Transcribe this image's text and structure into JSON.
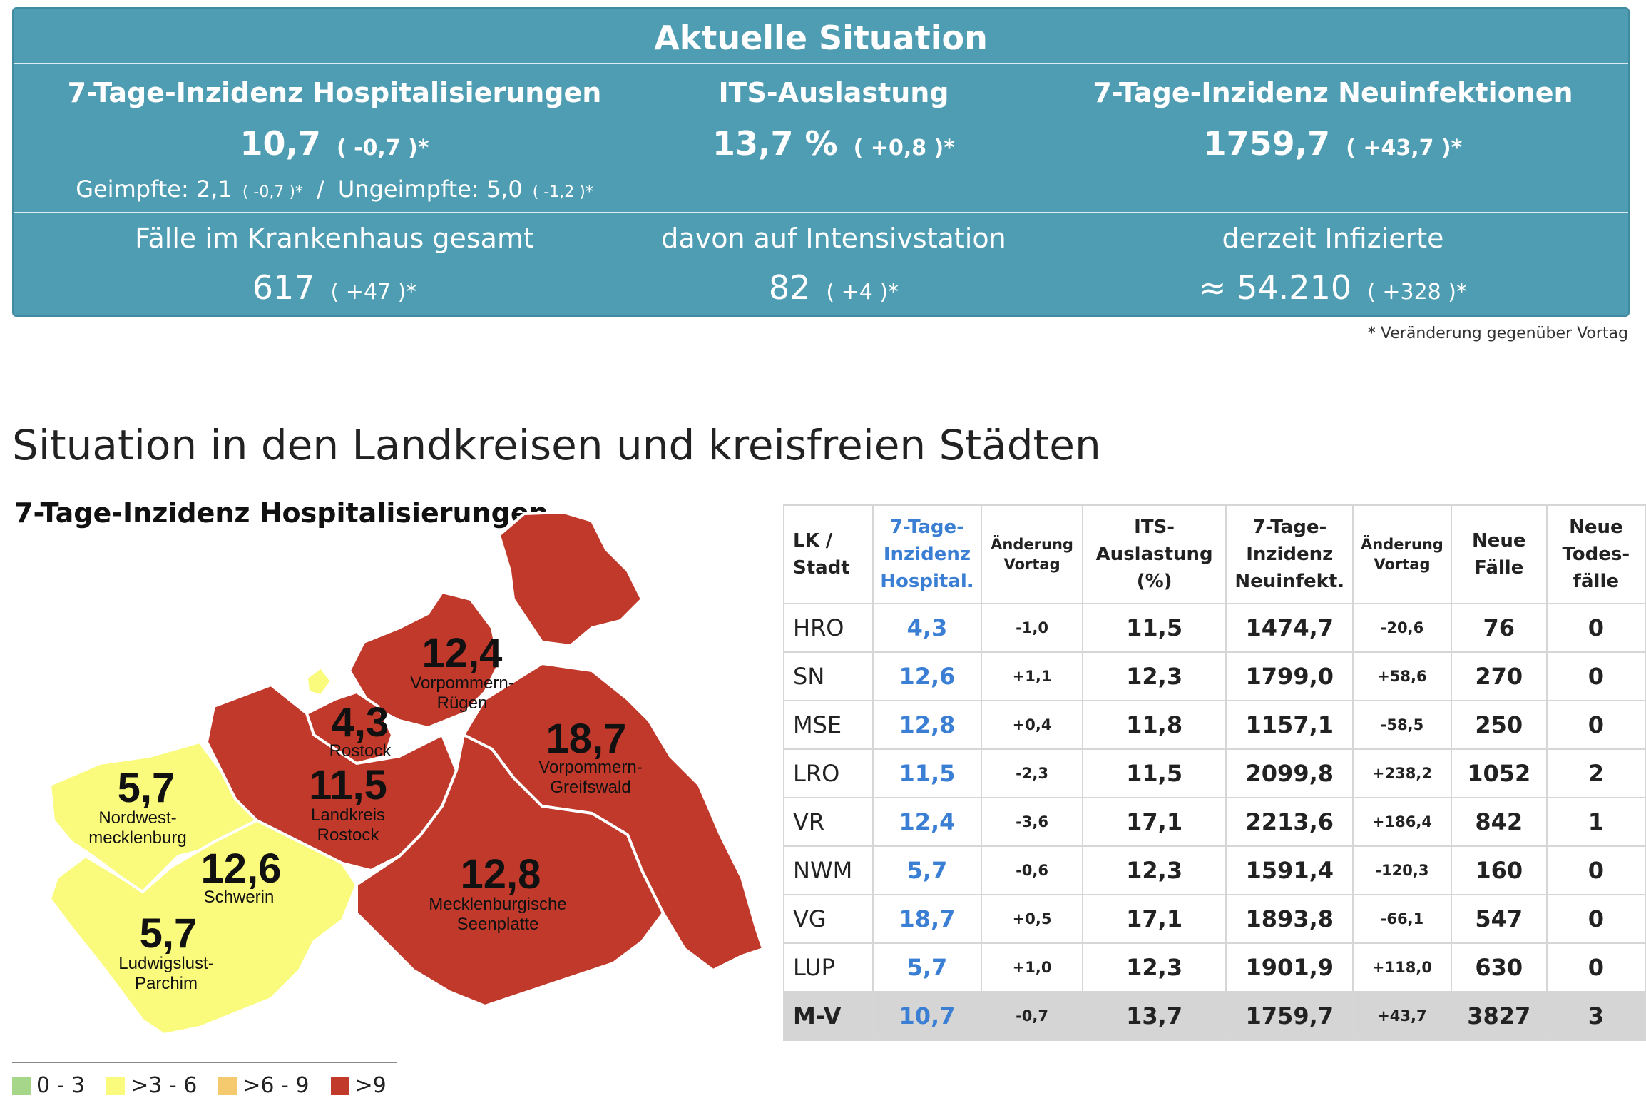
{
  "panel": {
    "title": "Aktuelle Situation",
    "hosp_label": "7-Tage-Inzidenz Hospitalisierungen",
    "hosp_value": "10,7",
    "hosp_delta": "( -0,7 )*",
    "vacc_label": "Geimpfte: 2,1",
    "vacc_delta": "( -0,7 )*",
    "separator": "/",
    "unvacc_label": "Ungeimpfte: 5,0",
    "unvacc_delta": "( -1,2 )*",
    "its_label": "ITS-Auslastung",
    "its_value": "13,7 %",
    "its_delta": "( +0,8 )*",
    "neu_label": "7-Tage-Inzidenz Neuinfektionen",
    "neu_value": "1759,7",
    "neu_delta": "( +43,7 )*",
    "kh_label": "Fälle im Krankenhaus gesamt",
    "kh_value": "617",
    "kh_delta": "( +47 )*",
    "int_label": "davon auf Intensivstation",
    "int_value": "82",
    "int_delta": "( +4 )*",
    "inf_label": "derzeit Infizierte",
    "inf_value": "≈ 54.210",
    "inf_delta": "( +328 )*"
  },
  "footnote": "* Veränderung gegenüber Vortag",
  "section_title": "Situation in den Landkreisen und kreisfreien Städten",
  "map": {
    "title": "7-Tage-Inzidenz Hospitalisierungen",
    "colors": {
      "green": "#a6d68a",
      "yellow": "#fafa7d",
      "orange": "#f5c96e",
      "red": "#c0392b"
    },
    "regions": [
      {
        "value": "12,4",
        "name1": "Vorpommern-",
        "name2": "Rügen"
      },
      {
        "value": "4,3",
        "name1": "Rostock",
        "name2": ""
      },
      {
        "value": "18,7",
        "name1": "Vorpommern-",
        "name2": "Greifswald"
      },
      {
        "value": "5,7",
        "name1": "Nordwest-",
        "name2": "mecklenburg"
      },
      {
        "value": "11,5",
        "name1": "Landkreis",
        "name2": "Rostock"
      },
      {
        "value": "12,6",
        "name1": "Schwerin",
        "name2": ""
      },
      {
        "value": "12,8",
        "name1": "Mecklenburgische",
        "name2": "Seenplatte"
      },
      {
        "value": "5,7",
        "name1": "Ludwigslust-",
        "name2": "Parchim"
      }
    ],
    "legend": [
      "0 - 3",
      ">3 - 6",
      ">6 - 9",
      ">9"
    ]
  },
  "table": {
    "headers": {
      "lk": [
        "LK /",
        "Stadt"
      ],
      "hosp": [
        "7-Tage-",
        "Inzidenz",
        "Hospital."
      ],
      "hosp_chg": [
        "Änderung",
        "Vortag"
      ],
      "its": [
        "ITS-",
        "Auslastung",
        "(%)"
      ],
      "neu": [
        "7-Tage-",
        "Inzidenz",
        "Neuinfekt."
      ],
      "neu_chg": [
        "Änderung",
        "Vortag"
      ],
      "faelle": [
        "Neue",
        "Fälle"
      ],
      "tod": [
        "Neue",
        "Todes-",
        "fälle"
      ]
    },
    "rows": [
      {
        "name": "HRO",
        "hosp": "4,3",
        "hosp_chg": "-1,0",
        "its": "11,5",
        "neu": "1474,7",
        "neu_chg": "-20,6",
        "faelle": "76",
        "tod": "0"
      },
      {
        "name": "SN",
        "hosp": "12,6",
        "hosp_chg": "+1,1",
        "its": "12,3",
        "neu": "1799,0",
        "neu_chg": "+58,6",
        "faelle": "270",
        "tod": "0"
      },
      {
        "name": "MSE",
        "hosp": "12,8",
        "hosp_chg": "+0,4",
        "its": "11,8",
        "neu": "1157,1",
        "neu_chg": "-58,5",
        "faelle": "250",
        "tod": "0"
      },
      {
        "name": "LRO",
        "hosp": "11,5",
        "hosp_chg": "-2,3",
        "its": "11,5",
        "neu": "2099,8",
        "neu_chg": "+238,2",
        "faelle": "1052",
        "tod": "2"
      },
      {
        "name": "VR",
        "hosp": "12,4",
        "hosp_chg": "-3,6",
        "its": "17,1",
        "neu": "2213,6",
        "neu_chg": "+186,4",
        "faelle": "842",
        "tod": "1"
      },
      {
        "name": "NWM",
        "hosp": "5,7",
        "hosp_chg": "-0,6",
        "its": "12,3",
        "neu": "1591,4",
        "neu_chg": "-120,3",
        "faelle": "160",
        "tod": "0"
      },
      {
        "name": "VG",
        "hosp": "18,7",
        "hosp_chg": "+0,5",
        "its": "17,1",
        "neu": "1893,8",
        "neu_chg": "-66,1",
        "faelle": "547",
        "tod": "0"
      },
      {
        "name": "LUP",
        "hosp": "5,7",
        "hosp_chg": "+1,0",
        "its": "12,3",
        "neu": "1901,9",
        "neu_chg": "+118,0",
        "faelle": "630",
        "tod": "0"
      }
    ],
    "total": {
      "name": "M-V",
      "hosp": "10,7",
      "hosp_chg": "-0,7",
      "its": "13,7",
      "neu": "1759,7",
      "neu_chg": "+43,7",
      "faelle": "3827",
      "tod": "3"
    }
  }
}
